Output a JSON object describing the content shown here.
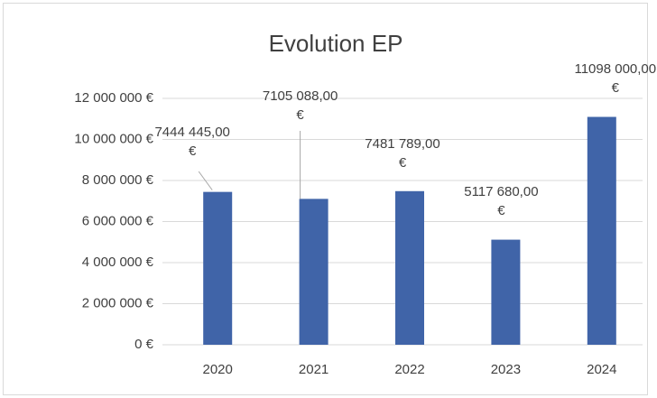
{
  "chart_data": {
    "type": "bar",
    "title": "Evolution EP",
    "categories": [
      "2020",
      "2021",
      "2022",
      "2023",
      "2024"
    ],
    "values": [
      7444445,
      7105088,
      7481789,
      5117680,
      11098000
    ],
    "value_labels": [
      "7444 445,00 €",
      "7105 088,00 €",
      "7481 789,00 €",
      "5117 680,00 €",
      "11098 000,00 €"
    ],
    "color": "#4064a8",
    "ylim": [
      0,
      12000000
    ],
    "yticks": [
      {
        "value": 0,
        "label": "0 €"
      },
      {
        "value": 2000000,
        "label": "2 000 000 €"
      },
      {
        "value": 4000000,
        "label": "4 000 000 €"
      },
      {
        "value": 6000000,
        "label": "6 000 000 €"
      },
      {
        "value": 8000000,
        "label": "8 000 000 €"
      },
      {
        "value": 10000000,
        "label": "10 000 000 €"
      },
      {
        "value": 12000000,
        "label": "12 000 000 €"
      }
    ],
    "grid": true
  }
}
